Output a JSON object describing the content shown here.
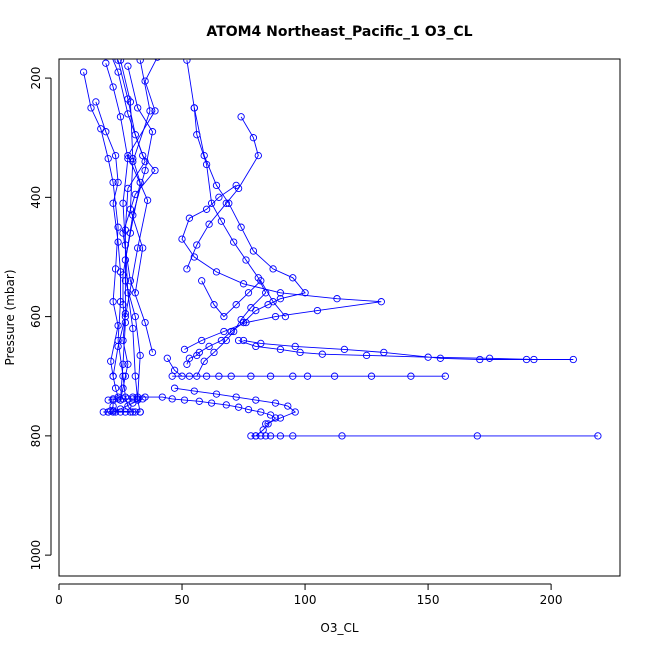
{
  "chart_data": {
    "type": "line",
    "title": "ATOM4 Northeast_Pacific_1 O3_CL",
    "xlabel": "O3_CL",
    "ylabel": "Pressure (mbar)",
    "xlim": [
      0,
      228
    ],
    "ylim": [
      1035,
      168
    ],
    "y_inverted": true,
    "xticks": [
      0,
      50,
      100,
      150,
      200
    ],
    "yticks": [
      200,
      400,
      600,
      800,
      1000
    ],
    "grid": false,
    "legend": "none",
    "series_color": "#0000ff",
    "series": [
      {
        "x": [
          10,
          13,
          17,
          20,
          22,
          24,
          23,
          22,
          24,
          21,
          22,
          23,
          24,
          22,
          22,
          21,
          20
        ],
        "y": [
          190,
          250,
          285,
          335,
          375,
          450,
          520,
          575,
          615,
          675,
          700,
          720,
          735,
          740,
          750,
          758,
          760
        ]
      },
      {
        "x": [
          15,
          19,
          23,
          24,
          22,
          24,
          25,
          25,
          24,
          26,
          27,
          28,
          30
        ],
        "y": [
          240,
          290,
          330,
          375,
          410,
          475,
          525,
          575,
          640,
          700,
          735,
          750,
          760
        ]
      },
      {
        "x": [
          19,
          22,
          25,
          28,
          26,
          27,
          28,
          30,
          31,
          32,
          33
        ],
        "y": [
          175,
          215,
          265,
          335,
          410,
          480,
          560,
          620,
          700,
          740,
          760
        ]
      },
      {
        "x": [
          24,
          28,
          31,
          35,
          28,
          27,
          27,
          31,
          33,
          32
        ],
        "y": [
          170,
          235,
          295,
          340,
          385,
          455,
          540,
          600,
          665,
          735
        ]
      },
      {
        "x": [
          25,
          29,
          30,
          33,
          29,
          27,
          27,
          26,
          28,
          27,
          26,
          25
        ],
        "y": [
          170,
          240,
          335,
          375,
          460,
          505,
          595,
          640,
          680,
          700,
          720,
          740
        ]
      },
      {
        "x": [
          28,
          32,
          38,
          35,
          30,
          26,
          26,
          27,
          26,
          25
        ],
        "y": [
          180,
          250,
          290,
          355,
          430,
          530,
          580,
          610,
          680,
          740
        ]
      },
      {
        "x": [
          21,
          24,
          28,
          34,
          39,
          31,
          26,
          29,
          35,
          38
        ],
        "y": [
          160,
          190,
          260,
          330,
          355,
          395,
          460,
          540,
          610,
          660
        ]
      },
      {
        "x": [
          40,
          35,
          39,
          28,
          36,
          32,
          27,
          24,
          22
        ],
        "y": [
          165,
          205,
          255,
          330,
          405,
          485,
          600,
          650,
          700
        ]
      },
      {
        "x": [
          33,
          37,
          30,
          29,
          34,
          31
        ],
        "y": [
          170,
          255,
          340,
          420,
          485,
          560
        ]
      },
      {
        "x": [
          52,
          55,
          59,
          64,
          69,
          74,
          79,
          87,
          95,
          100,
          90,
          85,
          80,
          75,
          70,
          66,
          61,
          57,
          56,
          53,
          52
        ],
        "y": [
          170,
          250,
          330,
          380,
          410,
          450,
          490,
          520,
          535,
          560,
          570,
          580,
          590,
          610,
          625,
          640,
          650,
          660,
          665,
          670,
          680
        ]
      },
      {
        "x": [
          55,
          56,
          60,
          62,
          66,
          71,
          76,
          81,
          84,
          78,
          74,
          71,
          68,
          63,
          59,
          56
        ],
        "y": [
          250,
          295,
          345,
          410,
          440,
          475,
          505,
          535,
          560,
          585,
          605,
          625,
          640,
          660,
          675,
          700
        ]
      },
      {
        "x": [
          74,
          79,
          81,
          73,
          68,
          61,
          56,
          52
        ],
        "y": [
          265,
          300,
          330,
          385,
          410,
          445,
          480,
          520
        ]
      },
      {
        "x": [
          72,
          65,
          60,
          53,
          50,
          55,
          64,
          75,
          90,
          113,
          131,
          105,
          88,
          76,
          67,
          58,
          51
        ],
        "y": [
          380,
          400,
          420,
          435,
          470,
          500,
          525,
          545,
          560,
          570,
          575,
          590,
          600,
          610,
          625,
          640,
          655
        ]
      },
      {
        "x": [
          73,
          80,
          90,
          98,
          107,
          125,
          150,
          175,
          193,
          209,
          190,
          171,
          155,
          132,
          116,
          96,
          82,
          75
        ],
        "y": [
          640,
          650,
          655,
          660,
          663,
          665,
          668,
          670,
          672,
          672,
          672,
          672,
          670,
          660,
          655,
          650,
          645,
          640
        ]
      },
      {
        "x": [
          44,
          47,
          50,
          46,
          53,
          60,
          65,
          70,
          78,
          86,
          95,
          101,
          112,
          127,
          143,
          157
        ],
        "y": [
          670,
          690,
          700,
          700,
          700,
          700,
          700,
          700,
          700,
          700,
          700,
          700,
          700,
          700,
          700,
          700
        ]
      },
      {
        "x": [
          47,
          55,
          64,
          72,
          80,
          88,
          93,
          96,
          90,
          84
        ],
        "y": [
          720,
          725,
          730,
          735,
          740,
          745,
          750,
          760,
          770,
          780
        ]
      },
      {
        "x": [
          30,
          35,
          42,
          46,
          51,
          57,
          62,
          68,
          73,
          77,
          82,
          86,
          88,
          85,
          83,
          80
        ],
        "y": [
          735,
          735,
          735,
          738,
          740,
          742,
          745,
          748,
          752,
          756,
          760,
          765,
          770,
          780,
          790,
          800
        ]
      },
      {
        "x": [
          78,
          80,
          82,
          84,
          86,
          90,
          95,
          115,
          170,
          219
        ],
        "y": [
          800,
          800,
          800,
          800,
          800,
          800,
          800,
          800,
          800,
          800
        ]
      },
      {
        "x": [
          20,
          22,
          24,
          26,
          28,
          30,
          32,
          34,
          30,
          25,
          22
        ],
        "y": [
          740,
          738,
          738,
          738,
          738,
          738,
          738,
          738,
          745,
          755,
          760
        ]
      },
      {
        "x": [
          18,
          20,
          23,
          25,
          27,
          29,
          31,
          33,
          22
        ],
        "y": [
          760,
          760,
          760,
          760,
          760,
          760,
          760,
          760,
          758
        ]
      },
      {
        "x": [
          58,
          63,
          67,
          72,
          77,
          82,
          87,
          92
        ],
        "y": [
          540,
          580,
          600,
          580,
          560,
          540,
          575,
          600
        ]
      }
    ]
  }
}
